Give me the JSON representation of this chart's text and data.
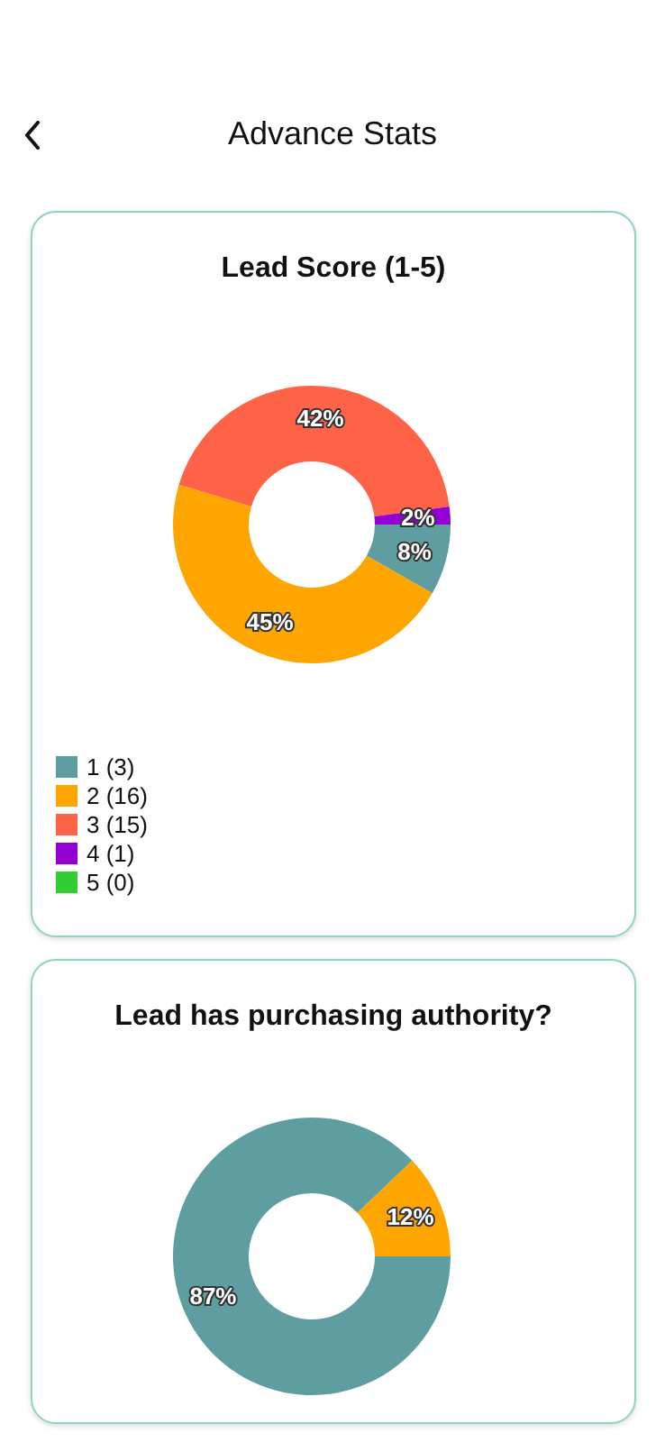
{
  "chart_data": [
    {
      "type": "other",
      "title": "Advance Stats"
    },
    {
      "type": "donut",
      "title": "Lead Score (1-5)",
      "categories": [
        "1 (3)",
        "2 (16)",
        "3 (15)",
        "4 (1)",
        "5 (0)"
      ],
      "values": [
        8,
        45,
        42,
        2,
        0
      ],
      "colors": [
        "#5f9ea0",
        "#ffa500",
        "#ff6347",
        "#9400d3",
        "#32cd32"
      ],
      "value_labels": [
        "8%",
        "45%",
        "42%",
        "2%",
        null
      ],
      "legend": "bottom left"
    },
    {
      "type": "donut",
      "title": "Lead has purchasing authority?",
      "categories": [
        null,
        null
      ],
      "values": [
        87,
        12
      ],
      "colors": [
        "#5f9ea0",
        "#ffa500"
      ],
      "value_labels": [
        "87%",
        "12%"
      ]
    }
  ]
}
